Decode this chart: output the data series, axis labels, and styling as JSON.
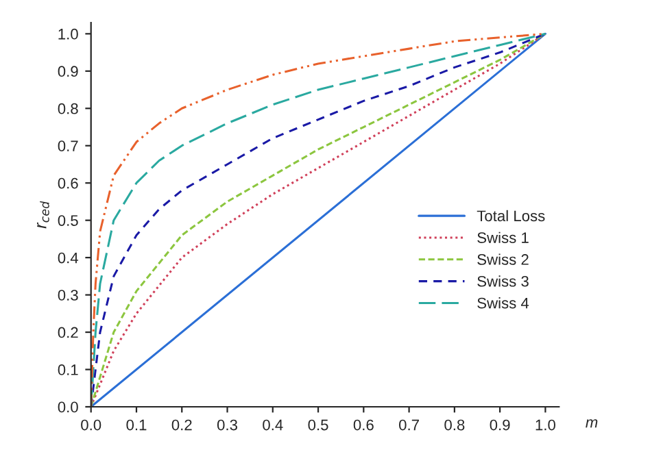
{
  "chart_data": {
    "type": "line",
    "xlabel": "m",
    "ylabel": "r$_{ced}$",
    "xlim": [
      0,
      1.03
    ],
    "ylim": [
      0,
      1.03
    ],
    "xticks": [
      {
        "value": 0,
        "label": "0.0"
      },
      0.1,
      0.2,
      0.3,
      0.4,
      0.5,
      0.6,
      0.7,
      0.8,
      0.9,
      {
        "value": 1,
        "label": "1.0"
      }
    ],
    "yticks": [
      {
        "value": 0,
        "label": "0.0"
      },
      0.1,
      0.2,
      0.3,
      0.4,
      0.5,
      0.6,
      0.7,
      0.8,
      0.9,
      {
        "value": 1,
        "label": "1.0"
      }
    ],
    "grid": false,
    "legend": "center right",
    "series": [
      {
        "name": "Total Loss",
        "color": "#2b6fd6",
        "line_style": "solid",
        "x": [
          0,
          1
        ],
        "values": [
          0,
          1
        ]
      },
      {
        "name": "Swiss 1",
        "color": "#d0405a",
        "line_style": "dotted",
        "x": [
          0,
          0.05,
          0.1,
          0.2,
          0.3,
          0.4,
          0.5,
          0.6,
          0.7,
          0.8,
          0.9,
          1
        ],
        "values": [
          0,
          0.15,
          0.25,
          0.4,
          0.49,
          0.57,
          0.64,
          0.71,
          0.78,
          0.85,
          0.92,
          1
        ]
      },
      {
        "name": "Swiss 2",
        "color": "#8cc63f",
        "line_style": "dashed",
        "x": [
          0,
          0.05,
          0.1,
          0.2,
          0.3,
          0.4,
          0.5,
          0.6,
          0.7,
          0.8,
          0.9,
          1
        ],
        "values": [
          0,
          0.2,
          0.31,
          0.46,
          0.55,
          0.62,
          0.69,
          0.75,
          0.81,
          0.87,
          0.93,
          1
        ]
      },
      {
        "name": "Swiss 3",
        "color": "#1a1aa6",
        "line_style": "dashed",
        "x": [
          0,
          0.02,
          0.05,
          0.1,
          0.15,
          0.2,
          0.3,
          0.4,
          0.5,
          0.6,
          0.7,
          0.8,
          0.9,
          1
        ],
        "values": [
          0,
          0.2,
          0.35,
          0.46,
          0.53,
          0.58,
          0.65,
          0.72,
          0.77,
          0.82,
          0.86,
          0.91,
          0.95,
          1
        ]
      },
      {
        "name": "Swiss 4",
        "color": "#2aa9a0",
        "line_style": "dashed",
        "x": [
          0,
          0.01,
          0.02,
          0.05,
          0.1,
          0.15,
          0.2,
          0.3,
          0.4,
          0.5,
          0.6,
          0.7,
          0.8,
          0.9,
          1
        ],
        "values": [
          0,
          0.2,
          0.33,
          0.5,
          0.6,
          0.66,
          0.7,
          0.76,
          0.81,
          0.85,
          0.88,
          0.91,
          0.94,
          0.97,
          1
        ]
      },
      {
        "color": "#e8612c",
        "line_style": "dashdot",
        "x": [
          0,
          0.005,
          0.01,
          0.02,
          0.05,
          0.1,
          0.15,
          0.2,
          0.3,
          0.4,
          0.5,
          0.6,
          0.7,
          0.8,
          0.9,
          1
        ],
        "values": [
          0,
          0.2,
          0.33,
          0.47,
          0.62,
          0.71,
          0.76,
          0.8,
          0.85,
          0.89,
          0.92,
          0.94,
          0.96,
          0.98,
          0.99,
          1
        ]
      }
    ]
  }
}
